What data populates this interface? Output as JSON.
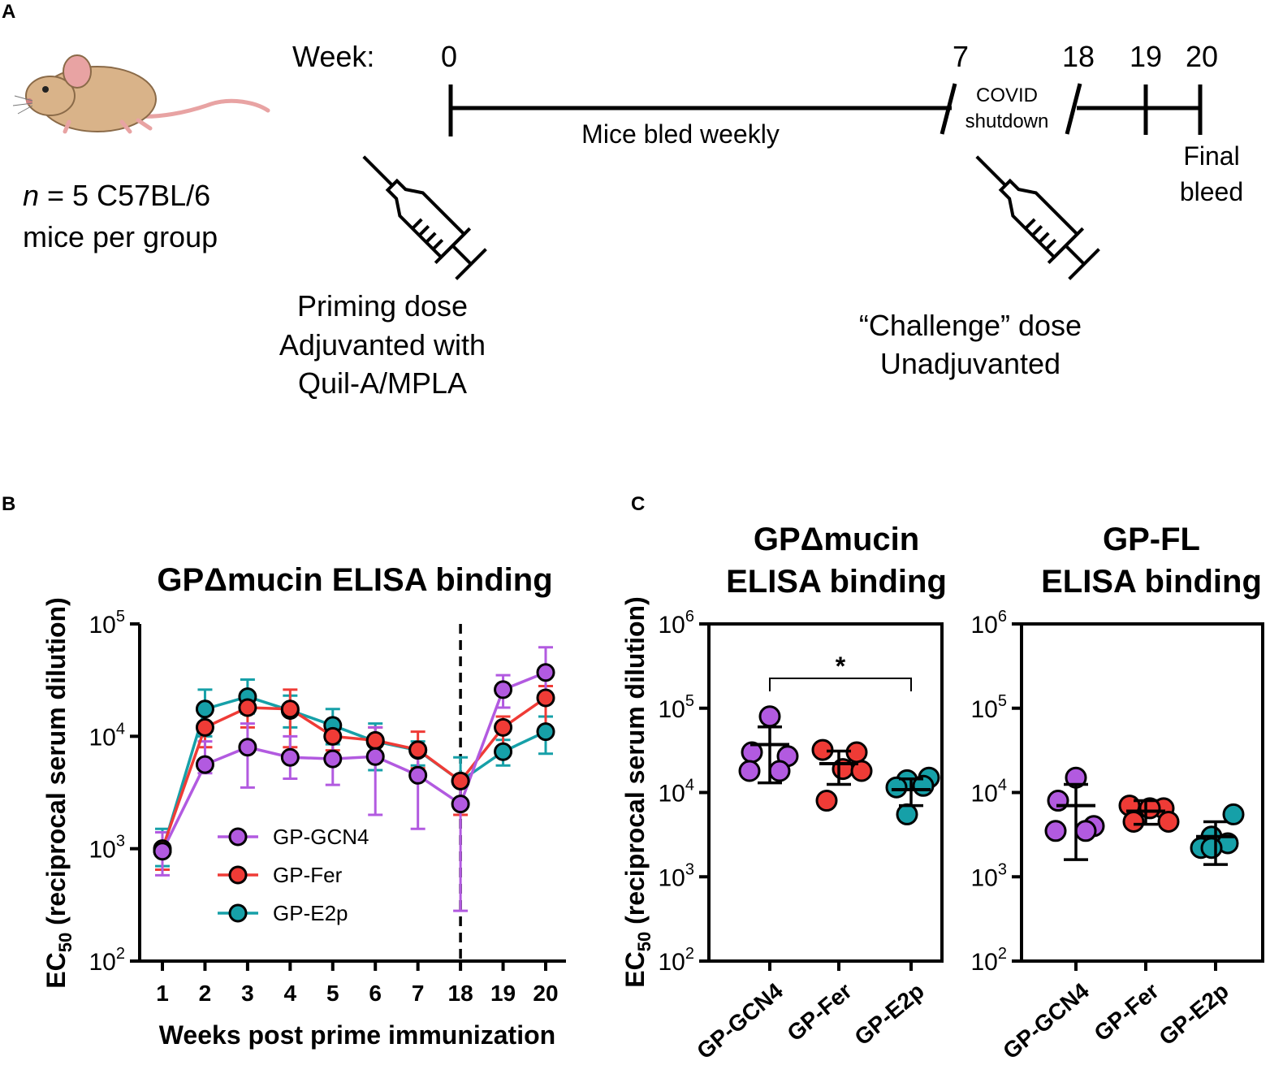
{
  "colors": {
    "gcn4": "#b25ae0",
    "fer": "#ef3b36",
    "e2p": "#16a0a8",
    "mouse_body": "#d9b389",
    "mouse_tail": "#e8a3a3",
    "ink": "#000000"
  },
  "panel_a": {
    "label": "A",
    "cohort_line1_italic": "n",
    "cohort_line1_rest": " = 5 C57BL/6",
    "cohort_line2": "mice per group",
    "week_label": "Week:",
    "weeks": [
      "0",
      "7",
      "18",
      "19",
      "20"
    ],
    "bleed_text": "Mice bled weekly",
    "covid_line1": "COVID",
    "covid_line2": "shutdown",
    "final_line1": "Final",
    "final_line2": "bleed",
    "prime_line1": "Priming dose",
    "prime_line2": "Adjuvanted with",
    "prime_line3": "Quil-A/MPLA",
    "challenge_line1": "“Challenge” dose",
    "challenge_line2": "Unadjuvanted",
    "icons": [
      "mouse-icon",
      "syringe-icon",
      "syringe-icon"
    ]
  },
  "panel_b": {
    "label": "B",
    "chart_data": {
      "type": "line",
      "title": "GPΔmucin ELISA binding",
      "xlabel": "Weeks post prime immunization",
      "ylabel_main": "EC",
      "ylabel_sub": "50",
      "ylabel_rest": " (reciprocal serum dilution)",
      "yscale": "log",
      "ylim": [
        100,
        100000
      ],
      "yticks": [
        {
          "base": "10",
          "exp": "2",
          "value": 100
        },
        {
          "base": "10",
          "exp": "3",
          "value": 1000
        },
        {
          "base": "10",
          "exp": "4",
          "value": 10000
        },
        {
          "base": "10",
          "exp": "5",
          "value": 100000
        }
      ],
      "categories": [
        "1",
        "2",
        "3",
        "4",
        "5",
        "6",
        "7",
        "18",
        "19",
        "20"
      ],
      "dashed_vline_at": "18",
      "legend_position": "lower-left",
      "series": [
        {
          "name": "GP-GCN4",
          "key": "gcn4",
          "values": [
            950,
            5600,
            8000,
            6500,
            6300,
            6600,
            4500,
            2500,
            26000,
            37000
          ],
          "err_low": [
            580,
            4700,
            3500,
            4200,
            3700,
            2000,
            1500,
            280,
            18000,
            22000
          ],
          "err_high": [
            1400,
            9000,
            13000,
            10000,
            11000,
            12000,
            7500,
            4200,
            35000,
            62000
          ]
        },
        {
          "name": "GP-Fer",
          "key": "fer",
          "values": [
            1000,
            12000,
            18000,
            17500,
            10000,
            9200,
            7600,
            4000,
            12000,
            22000
          ],
          "err_low": [
            650,
            8000,
            12000,
            8000,
            7500,
            6000,
            5200,
            2000,
            8000,
            12000
          ],
          "err_high": [
            1400,
            18000,
            22000,
            26000,
            13000,
            12000,
            11000,
            4500,
            15000,
            28000
          ]
        },
        {
          "name": "GP-E2p",
          "key": "e2p",
          "values": [
            960,
            17500,
            22500,
            17000,
            12500,
            9000,
            7500,
            4000,
            7300,
            11000
          ],
          "err_low": [
            700,
            10000,
            16000,
            12000,
            8500,
            5000,
            5500,
            2300,
            5500,
            7000
          ],
          "err_high": [
            1500,
            26000,
            32000,
            23000,
            17500,
            13000,
            9000,
            6500,
            9300,
            15000
          ]
        }
      ]
    }
  },
  "panel_c": {
    "label": "C",
    "charts": [
      {
        "type": "scatter",
        "title_line1": "GPΔmucin",
        "title_line2": "ELISA binding",
        "ylabel_main": "EC",
        "ylabel_sub": "50",
        "ylabel_rest": " (reciprocal serum dilution)",
        "yscale": "log",
        "ylim": [
          100,
          1000000
        ],
        "yticks": [
          {
            "base": "10",
            "exp": "2",
            "value": 100
          },
          {
            "base": "10",
            "exp": "3",
            "value": 1000
          },
          {
            "base": "10",
            "exp": "4",
            "value": 10000
          },
          {
            "base": "10",
            "exp": "5",
            "value": 100000
          },
          {
            "base": "10",
            "exp": "6",
            "value": 1000000
          }
        ],
        "categories": [
          "GP-GCN4",
          "GP-Fer",
          "GP-E2p"
        ],
        "keys": [
          "gcn4",
          "fer",
          "e2p"
        ],
        "points": [
          [
            80000,
            30000,
            27000,
            18000,
            18000
          ],
          [
            32000,
            30000,
            19000,
            18000,
            8000
          ],
          [
            15000,
            14000,
            12000,
            11500,
            5500
          ]
        ],
        "mean": [
          37000,
          22000,
          10800
        ],
        "sd_low": [
          13000,
          12500,
          7000
        ],
        "sd_high": [
          60000,
          31000,
          14500
        ],
        "significance": {
          "from": 0,
          "to": 2,
          "label": "*"
        }
      },
      {
        "type": "scatter",
        "title_line1": "GP-FL",
        "title_line2": "ELISA binding",
        "yscale": "log",
        "ylim": [
          100,
          1000000
        ],
        "yticks": [
          {
            "base": "10",
            "exp": "2",
            "value": 100
          },
          {
            "base": "10",
            "exp": "3",
            "value": 1000
          },
          {
            "base": "10",
            "exp": "4",
            "value": 10000
          },
          {
            "base": "10",
            "exp": "5",
            "value": 100000
          },
          {
            "base": "10",
            "exp": "6",
            "value": 1000000
          }
        ],
        "categories": [
          "GP-GCN4",
          "GP-Fer",
          "GP-E2p"
        ],
        "keys": [
          "gcn4",
          "fer",
          "e2p"
        ],
        "points": [
          [
            15000,
            8000,
            4000,
            3500,
            3500
          ],
          [
            7000,
            6500,
            6500,
            4500,
            4500
          ],
          [
            5500,
            3000,
            2500,
            2200,
            2200
          ]
        ],
        "mean": [
          7000,
          6000,
          3000
        ],
        "sd_low": [
          1600,
          4200,
          1400
        ],
        "sd_high": [
          12500,
          8000,
          4500
        ],
        "significance": null
      }
    ]
  }
}
